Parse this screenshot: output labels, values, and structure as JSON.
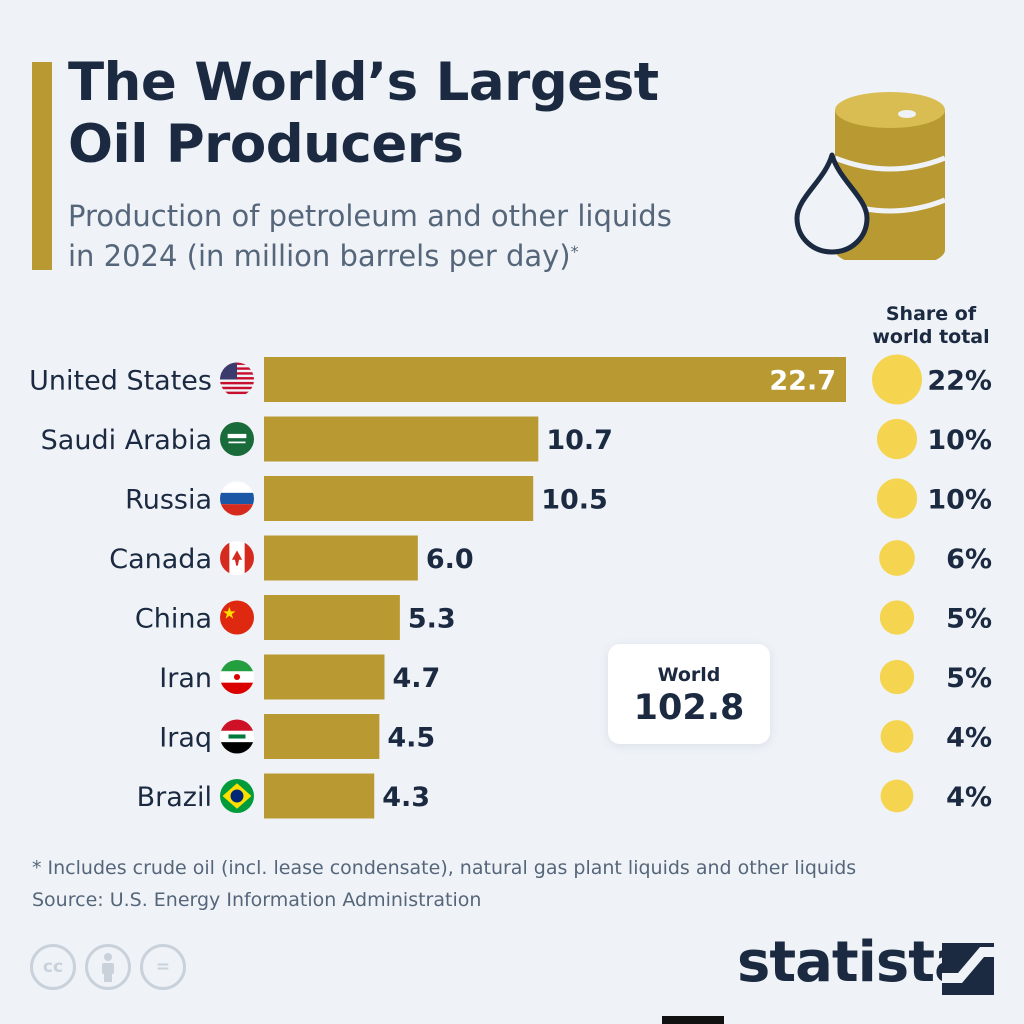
{
  "header": {
    "title_line1": "The World’s Largest",
    "title_line2": "Oil Producers",
    "subtitle_line1": "Production of petroleum and other liquids",
    "subtitle_line2": "in 2024 (in million barrels per day)",
    "subtitle_mark": "*"
  },
  "share_header": {
    "line1": "Share of",
    "line2": "world total"
  },
  "chart_data": {
    "type": "bar",
    "orientation": "horizontal",
    "categories": [
      "United States",
      "Saudi Arabia",
      "Russia",
      "Canada",
      "China",
      "Iran",
      "Iraq",
      "Brazil"
    ],
    "values": [
      22.7,
      10.7,
      10.5,
      6.0,
      5.3,
      4.7,
      4.5,
      4.3
    ],
    "value_labels": [
      "22.7",
      "10.7",
      "10.5",
      "6.0",
      "5.3",
      "4.7",
      "4.5",
      "4.3"
    ],
    "share_of_world_total": [
      22,
      10,
      10,
      6,
      5,
      5,
      4,
      4
    ],
    "share_labels": [
      "22%",
      "10%",
      "10%",
      "6%",
      "5%",
      "5%",
      "4%",
      "4%"
    ],
    "flags": [
      "us-flag-icon",
      "saudi-arabia-flag-icon",
      "russia-flag-icon",
      "canada-flag-icon",
      "china-flag-icon",
      "iran-flag-icon",
      "iraq-flag-icon",
      "brazil-flag-icon"
    ],
    "xlim": [
      0,
      22.7
    ],
    "bar_color": "#b99a32",
    "bubble_color": "#f5d44f",
    "grid": false
  },
  "world": {
    "label": "World",
    "value": "102.8"
  },
  "footnote": {
    "note": "* Includes crude oil (incl. lease condensate), natural gas plant liquids and other liquids",
    "source": "Source: U.S. Energy Information Administration"
  },
  "license_icons": [
    {
      "name": "cc-icon",
      "text": "cc"
    },
    {
      "name": "attribution-icon",
      "text": ""
    },
    {
      "name": "no-derivatives-icon",
      "text": "="
    }
  ],
  "brand": "statista",
  "colors": {
    "accent": "#b99a32",
    "text": "#1b2a41",
    "muted": "#56667a",
    "background": "#eff3f8"
  }
}
